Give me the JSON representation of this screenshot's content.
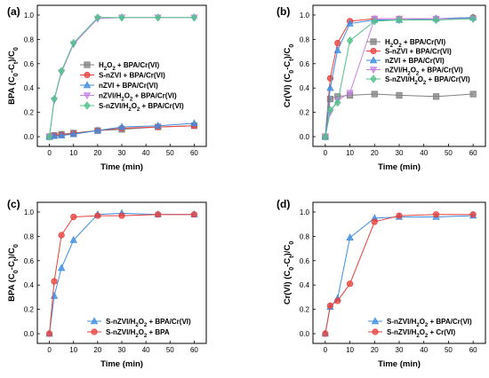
{
  "chart_data": [
    {
      "type": "line",
      "panel_label": "(a)",
      "xlabel": "Time (min)",
      "ylabel": "BPA (C0-Ct)/C0",
      "xlim": [
        -5,
        65
      ],
      "ylim": [
        -0.08,
        1.08
      ],
      "xticks": [
        0,
        10,
        20,
        30,
        40,
        50,
        60
      ],
      "yticks": [
        0.0,
        0.2,
        0.4,
        0.6,
        0.8,
        1.0
      ],
      "ytick_labels": [
        "0.0",
        "0.2",
        "0.4",
        "0.6",
        "0.8",
        "1.0"
      ],
      "legend_position": "center-right",
      "x": [
        0,
        2,
        5,
        10,
        20,
        30,
        45,
        60
      ],
      "series": [
        {
          "name": "H2O2 + BPA/Cr(VI)",
          "color": "#808080",
          "marker": "square",
          "values": [
            0,
            0.01,
            0.02,
            0.03,
            0.05,
            0.06,
            0.08,
            0.09
          ]
        },
        {
          "name": "S-nZVI + BPA/Cr(VI)",
          "color": "#e8413c",
          "marker": "circle",
          "values": [
            0,
            0.01,
            0.015,
            0.025,
            0.05,
            0.07,
            0.08,
            0.09
          ]
        },
        {
          "name": "nZVI + BPA/Cr(VI)",
          "color": "#3d8de0",
          "marker": "triangle-up",
          "values": [
            0,
            0.005,
            0.01,
            0.02,
            0.05,
            0.08,
            0.09,
            0.11
          ]
        },
        {
          "name": "nZVI/H2O2 + BPA/Cr(VI)",
          "color": "#c882e6",
          "marker": "triangle-down",
          "values": [
            0,
            0.3,
            0.53,
            0.76,
            0.97,
            0.98,
            0.98,
            0.98
          ]
        },
        {
          "name": "S-nZVI/H2O2 + BPA/Cr(VI)",
          "color": "#4fc28a",
          "marker": "diamond",
          "values": [
            0,
            0.31,
            0.54,
            0.77,
            0.98,
            0.98,
            0.98,
            0.98
          ]
        }
      ]
    },
    {
      "type": "line",
      "panel_label": "(b)",
      "xlabel": "Time (min)",
      "ylabel": "Cr(VI) (C0-Ct)/C0",
      "xlim": [
        -5,
        65
      ],
      "ylim": [
        -0.08,
        1.08
      ],
      "xticks": [
        0,
        10,
        20,
        30,
        40,
        50,
        60
      ],
      "yticks": [
        0.0,
        0.2,
        0.4,
        0.6,
        0.8,
        1.0
      ],
      "ytick_labels": [
        "0.0",
        "0.2",
        "0.4",
        "0.6",
        "0.8",
        "1.0"
      ],
      "legend_position": "center-right",
      "x": [
        0,
        2,
        5,
        10,
        20,
        30,
        45,
        60
      ],
      "series": [
        {
          "name": "H2O2 + BPA/Cr(VI)",
          "color": "#808080",
          "marker": "square",
          "values": [
            0,
            0.31,
            0.33,
            0.34,
            0.35,
            0.34,
            0.33,
            0.35
          ]
        },
        {
          "name": "S-nZVI + BPA/Cr(VI)",
          "color": "#e8413c",
          "marker": "circle",
          "values": [
            0,
            0.48,
            0.77,
            0.95,
            0.97,
            0.97,
            0.97,
            0.98
          ]
        },
        {
          "name": "nZVI + BPA/Cr(VI)",
          "color": "#3d8de0",
          "marker": "triangle-up",
          "values": [
            0,
            0.4,
            0.71,
            0.93,
            0.96,
            0.96,
            0.97,
            0.98
          ]
        },
        {
          "name": "nZVI/H2O2 + BPA/Cr(VI)",
          "color": "#c882e6",
          "marker": "triangle-down",
          "values": [
            0,
            0.2,
            0.3,
            0.36,
            0.97,
            0.97,
            0.97,
            0.97
          ]
        },
        {
          "name": "S-nZVI/H2O2 + BPA/Cr(VI)",
          "color": "#4fc28a",
          "marker": "diamond",
          "values": [
            0,
            0.22,
            0.28,
            0.79,
            0.95,
            0.96,
            0.96,
            0.97
          ]
        }
      ]
    },
    {
      "type": "line",
      "panel_label": "(c)",
      "xlabel": "Time (min)",
      "ylabel": "BPA (C0-Ct)/C0",
      "xlim": [
        -5,
        65
      ],
      "ylim": [
        -0.08,
        1.08
      ],
      "xticks": [
        0,
        10,
        20,
        30,
        40,
        50,
        60
      ],
      "yticks": [
        0.0,
        0.2,
        0.4,
        0.6,
        0.8,
        1.0
      ],
      "ytick_labels": [
        "0.0",
        "0.2",
        "0.4",
        "0.6",
        "0.8",
        "1.0"
      ],
      "legend_position": "bottom-right",
      "x": [
        0,
        2,
        5,
        10,
        20,
        30,
        45,
        60
      ],
      "series": [
        {
          "name": "S-nZVI/H2O2 + BPA/Cr(VI)",
          "color": "#3d8de0",
          "marker": "triangle-up",
          "values": [
            0,
            0.31,
            0.54,
            0.77,
            0.98,
            0.99,
            0.98,
            0.98
          ]
        },
        {
          "name": "S-nZVI/H2O2 + BPA",
          "color": "#e8413c",
          "marker": "circle",
          "values": [
            0,
            0.43,
            0.81,
            0.96,
            0.97,
            0.97,
            0.98,
            0.98
          ]
        }
      ]
    },
    {
      "type": "line",
      "panel_label": "(d)",
      "xlabel": "Time (min)",
      "ylabel": "Cr(VI) (C0-Ct)/C0",
      "xlim": [
        -5,
        65
      ],
      "ylim": [
        -0.08,
        1.08
      ],
      "xticks": [
        0,
        10,
        20,
        30,
        40,
        50,
        60
      ],
      "yticks": [
        0.0,
        0.2,
        0.4,
        0.6,
        0.8,
        1.0
      ],
      "ytick_labels": [
        "0.0",
        "0.2",
        "0.4",
        "0.6",
        "0.8",
        "1.0"
      ],
      "legend_position": "bottom-right",
      "x": [
        0,
        2,
        5,
        10,
        20,
        30,
        45,
        60
      ],
      "series": [
        {
          "name": "S-nZVI/H2O2 + BPA/Cr(VI)",
          "color": "#3d8de0",
          "marker": "triangle-up",
          "values": [
            0,
            0.22,
            0.29,
            0.79,
            0.95,
            0.96,
            0.96,
            0.97
          ]
        },
        {
          "name": "S-nZVI/H2O2 + Cr(VI)",
          "color": "#e8413c",
          "marker": "circle",
          "values": [
            0,
            0.23,
            0.27,
            0.41,
            0.92,
            0.97,
            0.98,
            0.98
          ]
        }
      ]
    }
  ]
}
